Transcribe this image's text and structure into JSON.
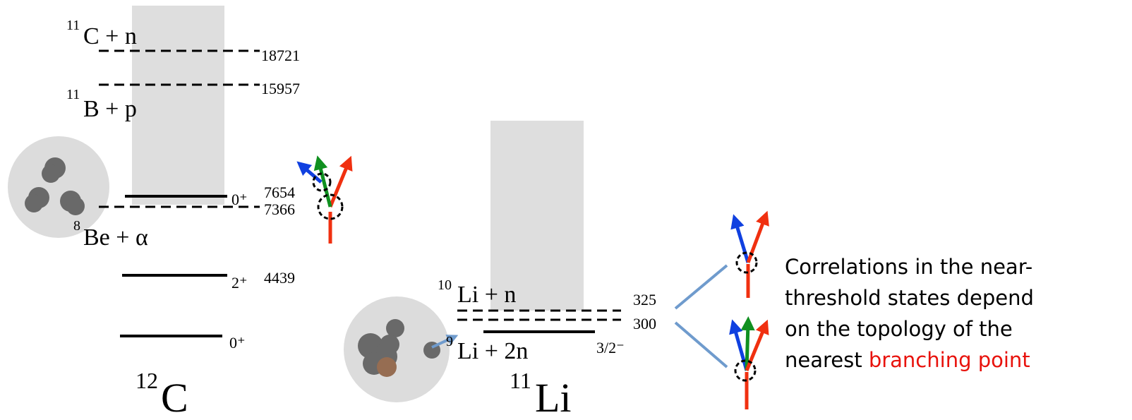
{
  "carbon": {
    "nucleus": {
      "mass": "12",
      "symbol": "C"
    },
    "thresholds": [
      {
        "mass": "11",
        "label": "C + n",
        "energy": 18721
      },
      {
        "mass": "11",
        "label": "B + p",
        "energy": 15957
      },
      {
        "mass": "8",
        "label": "Be + α",
        "energy": 7366
      }
    ],
    "levels": [
      {
        "spin": "0⁺",
        "energy": 7654
      },
      {
        "spin": "2⁺",
        "energy": 4439
      },
      {
        "spin": "0⁺"
      }
    ]
  },
  "lithium": {
    "nucleus": {
      "mass": "11",
      "symbol": "Li"
    },
    "thresholds": [
      {
        "mass": "10",
        "label": "Li + n",
        "energy": 325
      },
      {
        "mass": "9",
        "label": "Li + 2n",
        "energy": 300
      }
    ],
    "levels": [
      {
        "spin": "3/2⁻"
      }
    ]
  },
  "caption": {
    "lines": [
      "Correlations in the near-",
      "threshold states depend",
      "on the topology of the"
    ],
    "last": "nearest ",
    "highlight": "branching point"
  }
}
